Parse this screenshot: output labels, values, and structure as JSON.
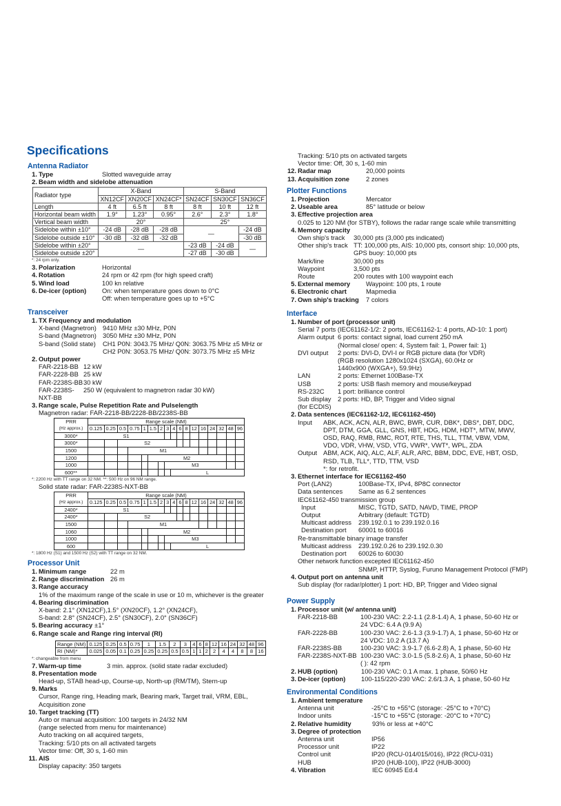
{
  "page_title": "Specifications",
  "colors": {
    "heading": "#0b54a4",
    "text": "#1a1a1a"
  },
  "tables": {
    "antenna": {
      "corner": "Radiator type",
      "bands": [
        "X-Band",
        "S-Band"
      ],
      "models": [
        "XN12CF",
        "XN20CF",
        "XN24CF*",
        "SN24CF",
        "SN30CF",
        "SN36CF"
      ],
      "length": {
        "label": "Length",
        "values": [
          "4 ft",
          "6.5 ft",
          "8 ft",
          "8 ft",
          "10 ft",
          "12 ft"
        ]
      },
      "hbw": {
        "label": "Horizontal beam width",
        "values": [
          "1.9°",
          "1.23°",
          "0.95°",
          "2.6°",
          "2.3°",
          "1.8°"
        ]
      },
      "vbw": {
        "label": "Vertical beam width",
        "values": [
          "20°",
          "25°"
        ]
      },
      "sw10": {
        "label": "Sidelobe within ±10°",
        "values": [
          "-24 dB",
          "-28 dB",
          "-28 dB",
          "—",
          "-24 dB"
        ]
      },
      "so10": {
        "label": "Sidelobe outside ±10°",
        "values": [
          "-30 dB",
          "-32 dB",
          "-32 dB",
          "-30 dB"
        ]
      },
      "sw20": {
        "label": "Sidelobe within ±20°",
        "values": [
          "—",
          "-23 dB",
          "-24 dB",
          "—"
        ]
      },
      "so20": {
        "label": "Sidelobe outside ±20°",
        "values": [
          "-27 dB",
          "-30 dB"
        ]
      }
    },
    "magnetron": {
      "prr_label": "PRR",
      "prr_unit": "(Hz approx.)",
      "range_label": "Range scale (NM)",
      "columns": [
        "0.125",
        "0.25",
        "0.5",
        "0.75",
        "1",
        "1.5",
        "2",
        "3",
        "4",
        "6",
        "8",
        "12",
        "16",
        "24",
        "32",
        "48",
        "96"
      ],
      "rows": [
        {
          "prr": "3000*",
          "mode": "S1",
          "from": "0.125",
          "to": "2"
        },
        {
          "prr": "3000*",
          "mode": "S2",
          "from": "0.5",
          "to": "4"
        },
        {
          "prr": "1500",
          "mode": "M1",
          "from": "0.75",
          "to": "12"
        },
        {
          "prr": "1200",
          "mode": "M2",
          "from": "1.5",
          "to": "32"
        },
        {
          "prr": "1000",
          "mode": "M3",
          "from": "3",
          "to": "32"
        },
        {
          "prr": "600**",
          "mode": "L",
          "from": "4",
          "to": "96"
        }
      ]
    },
    "solid": {
      "prr_label": "PRR",
      "prr_unit": "(Hz approx.)",
      "range_label": "Range scale (NM)",
      "columns": [
        "0.125",
        "0.25",
        "0.5",
        "0.75",
        "1",
        "1.5",
        "2",
        "3",
        "4",
        "6",
        "8",
        "12",
        "16",
        "24",
        "32",
        "48",
        "96"
      ],
      "rows": [
        {
          "prr": "2400*",
          "mode": "S1",
          "from": "0.125",
          "to": "2"
        },
        {
          "prr": "2400*",
          "mode": "S2",
          "from": "0.5",
          "to": "4"
        },
        {
          "prr": "1500",
          "mode": "M1",
          "from": "0.75",
          "to": "12"
        },
        {
          "prr": "1060",
          "mode": "M2",
          "from": "1.5",
          "to": "32"
        },
        {
          "prr": "1000",
          "mode": "M3",
          "from": "3",
          "to": "32"
        },
        {
          "prr": "600",
          "mode": "L",
          "from": "4",
          "to": "96"
        }
      ]
    },
    "ri": {
      "range_label": "Range (NM)",
      "ri_label": "RI (NM)*",
      "range": [
        "0.125",
        "0.25",
        "0.5",
        "0.75",
        "1",
        "1.5",
        "2",
        "3",
        "4",
        "6",
        "8",
        "12",
        "16",
        "24",
        "32",
        "48",
        "96"
      ],
      "ri": [
        "0.025",
        "0.05",
        "0.1",
        "0.25",
        "0.25",
        "0.25",
        "0.5",
        "0.5",
        "1",
        "1",
        "2",
        "2",
        "4",
        "4",
        "8",
        "8",
        "16"
      ]
    }
  },
  "left": [
    {
      "heading": "Antenna Radiator",
      "items": [
        {
          "n": "1.",
          "label": "Type",
          "value": "Slotted waveguide array"
        },
        {
          "n": "2.",
          "label": "Beam width and sidelobe attenuation",
          "body": [
            {
              "table": "antenna"
            },
            {
              "note": "*: 24 rpm only."
            }
          ]
        },
        {
          "n": "3.",
          "label": "Polarization",
          "value": "Horizontal"
        },
        {
          "n": "4.",
          "label": "Rotation",
          "value": "24 rpm or 42 rpm (for high speed craft)"
        },
        {
          "n": "5.",
          "label": "Wind load",
          "value": "100 kn relative"
        },
        {
          "n": "6.",
          "label": "De-icer (option)",
          "value": "On: when temperature goes down to 0°C",
          "body": [
            {
              "kv": [
                {
                  "k": "",
                  "v": "Off: when temperature goes up to +5°C"
                }
              ]
            }
          ]
        }
      ]
    },
    {
      "heading": "Transceiver",
      "items": [
        {
          "n": "1.",
          "label": "TX Frequency and modulation",
          "body": [
            {
              "kv": [
                {
                  "k": "X-band (Magnetron)",
                  "v": "9410 MHz ±30 MHz, P0N"
                },
                {
                  "k": "S-band (Magnetron)",
                  "v": "3050 MHz ±30 MHz, P0N"
                },
                {
                  "k": "S-band (Solid state)",
                  "v": [
                    "CH1 P0N: 3043.75 MHz/ Q0N: 3063.75 MHz ±5 MHz or",
                    "CH2 P0N: 3053.75 MHz/ Q0N: 3073.75 MHz ±5 MHz"
                  ]
                }
              ]
            }
          ]
        },
        {
          "n": "2.",
          "label": "Output power",
          "body": [
            {
              "kv": [
                {
                  "k": "FAR-2218-BB",
                  "v": "12 kW"
                },
                {
                  "k": "FAR-2228-BB",
                  "v": "25 kW"
                },
                {
                  "k": "FAR-2238S-BB",
                  "v": "30 kW"
                },
                {
                  "k": "FAR-2238S-NXT-BB",
                  "v": "250 W (equivalent to magnetron radar 30 kW)"
                }
              ]
            }
          ]
        },
        {
          "n": "3.",
          "label": "Range scale, Pulse Repetition Rate and Pulselength",
          "body": [
            {
              "text": "Magnetron radar: FAR-2218-BB/2228-BB/2238S-BB"
            },
            {
              "table": "magnetron"
            },
            {
              "note": "*: 2200 Hz with TT range on 32 NM. **: 500 Hz on 96 NM range."
            },
            {
              "text": "Solid state radar: FAR-2238S-NXT-BB"
            },
            {
              "table": "solid"
            },
            {
              "note": "*: 1800 Hz (S1) and 1500 Hz (S2) with TT range on 32 NM."
            }
          ]
        }
      ]
    },
    {
      "heading": "Processor Unit",
      "items": [
        {
          "n": "1.",
          "label": "Minimum range",
          "value": "22 m"
        },
        {
          "n": "2.",
          "label": "Range discrimination",
          "value": "26 m"
        },
        {
          "n": "3.",
          "label": "Range accuracy",
          "body": [
            {
              "text": "1% of the maximum range of the scale in use or 10 m, whichever is the greater"
            }
          ]
        },
        {
          "n": "4.",
          "label": "Bearing discrimination",
          "body": [
            {
              "text": "X-band: 2.1° (XN12CF),1.5° (XN20CF), 1.2° (XN24CF),"
            },
            {
              "text": "S-band: 2.8° (SN24CF), 2.5° (SN30CF), 2.0° (SN36CF)"
            }
          ]
        },
        {
          "n": "5.",
          "label": "Bearing accuracy",
          "value": "±1°"
        },
        {
          "n": "6.",
          "label": "Range scale and Range ring interval (RI)",
          "body": [
            {
              "table": "ri"
            },
            {
              "note": "*: changeable from menu"
            }
          ]
        },
        {
          "n": "7.",
          "label": "Warm-up time",
          "value": "3 min. approx. (solid state radar excluded)"
        },
        {
          "n": "8.",
          "label": "Presentation mode",
          "body": [
            {
              "text": "Head-up, STAB head-up, Course-up, North-up (RM/TM), Stern-up"
            }
          ]
        },
        {
          "n": "9.",
          "label": "Marks",
          "body": [
            {
              "text": "Cursor, Range ring, Heading mark, Bearing mark, Target trail, VRM, EBL,"
            },
            {
              "text": "Acquisition zone"
            }
          ]
        },
        {
          "n": "10.",
          "label": "Target tracking (TT)",
          "body": [
            {
              "text": "Auto or manual acquisition: 100 targets in 24/32 NM"
            },
            {
              "text": "(range selected from menu for maintenance)"
            },
            {
              "text": "Auto tracking on all acquired targets,"
            },
            {
              "text": "Tracking: 5/10 pts on all activated targets"
            },
            {
              "text": "Vector time: Off, 30 s, 1-60 min"
            }
          ]
        },
        {
          "n": "11.",
          "label": "AIS",
          "body": [
            {
              "text": "Display capacity: 350 targets"
            }
          ]
        }
      ]
    }
  ],
  "right": [
    {
      "heading": null,
      "items": [
        {
          "body": [
            {
              "text": "Tracking: 5/10 pts on activated targets"
            },
            {
              "text": "Vector time: Off, 30 s, 1-60 min"
            }
          ]
        },
        {
          "n": "12.",
          "label": "Radar map",
          "value": "20,000 points"
        },
        {
          "n": "13.",
          "label": "Acquisition zone",
          "value": "2 zones"
        }
      ]
    },
    {
      "heading": "Plotter Functions",
      "items": [
        {
          "n": "1.",
          "label": "Projection",
          "value": "Mercator"
        },
        {
          "n": "2.",
          "label": "Useable area",
          "value": "85° latitude or below"
        },
        {
          "n": "3.",
          "label": "Effective projection area",
          "body": [
            {
              "text": "0.025 to 120 NM (for STBY), follows the radar range scale while transmitting"
            }
          ]
        },
        {
          "n": "4.",
          "label": "Memory capacity",
          "body": [
            {
              "kv": [
                {
                  "k": "Own ship's track",
                  "v": "30,000 pts (3,000 pts indicated)"
                },
                {
                  "k": "Other ship's track",
                  "v": [
                    "TT: 100,000 pts, AIS: 10,000 pts, consort ship: 10,000 pts,",
                    "GPS buoy: 10,000 pts"
                  ]
                },
                {
                  "k": "Mark/line",
                  "v": "30,000 pts"
                },
                {
                  "k": "Waypoint",
                  "v": "3,500 pts"
                },
                {
                  "k": "Route",
                  "v": "200 routes with 100 waypoint each"
                }
              ]
            }
          ]
        },
        {
          "n": "5.",
          "label": "External memory",
          "value": "Waypoint: 100 pts, 1 route"
        },
        {
          "n": "6.",
          "label": "Electronic chart",
          "value": "Mapmedia"
        },
        {
          "n": "7.",
          "label": "Own ship's tracking",
          "value": "7 colors"
        }
      ]
    },
    {
      "heading": "Interface",
      "items": [
        {
          "n": "1.",
          "label": "Number of port (processor unit)",
          "body": [
            {
              "text": "Serial  7 ports (IEC61162-1/2: 2 ports, IEC61162-1: 4 ports, AD-10: 1 port)"
            },
            {
              "kv": [
                {
                  "k": "Alarm output",
                  "v": [
                    "6 ports: contact signal, load current 250 mA",
                    "(Normal close/ open: 4, System fail: 1, Power fail: 1)"
                  ]
                },
                {
                  "k": "DVI output",
                  "v": [
                    "2 ports: DVI-D, DVI-I or RGB picture data (for VDR)",
                    "(RGB resolution 1280x1024 (SXGA), 60.0Hz or",
                    "1440x900 (WXGA+), 59.9Hz)"
                  ]
                },
                {
                  "k": "LAN",
                  "v": "2 ports: Ethernet 100Base-TX"
                },
                {
                  "k": "USB",
                  "v": "2 ports: USB flash memory and mouse/keypad"
                },
                {
                  "k": "RS-232C",
                  "v": "1 port: brilliance control"
                },
                {
                  "k": "Sub display (for ECDIS)",
                  "v": "2 ports: HD, BP, Trigger and Video signal"
                }
              ]
            }
          ]
        },
        {
          "n": "2.",
          "label": "Data sentences (IEC61162-1/2, IEC61162-450)",
          "body": [
            {
              "kv": [
                {
                  "k": "Input",
                  "v": [
                    "ABK, ACK, ACN, ALR, BWC, BWR, CUR, DBK*, DBS*, DBT, DDC,",
                    "DPT, DTM, GGA, GLL, GNS, HBT, HDG, HDM, HDT*, MTW, MWV,",
                    "OSD, RAQ, RMB, RMC, ROT, RTE, THS, TLL, TTM, VBW, VDM,",
                    "VDO, VDR, VHW, VSD, VTG, VWR*, VWT*, WPL, ZDA"
                  ]
                },
                {
                  "k": "Output",
                  "v": [
                    "ABM, ACK, AIQ, ALC, ALF, ALR, ARC, BBM, DDC, EVE, HBT, OSD,",
                    "RSD, TLB, TLL*, TTD, TTM, VSD",
                    "*: for retrofit."
                  ]
                }
              ]
            }
          ]
        },
        {
          "n": "3.",
          "label": "Ethernet interface for IEC61162-450",
          "body": [
            {
              "kv": [
                {
                  "k": "Port (LAN2)",
                  "v": "100Base-TX, IPv4, 8P8C connector"
                },
                {
                  "k": "Data sentences",
                  "v": "Same as 6.2 sentences"
                }
              ]
            },
            {
              "text": "IEC61162-450 transmission group",
              "kv": [
                {
                  "k": "Input",
                  "v": "MISC, TGTD, SATD, NAVD, TIME, PROP"
                },
                {
                  "k": "Output",
                  "v": "Arbitrary (default: TGTD)"
                },
                {
                  "k": "Multicast address",
                  "v": "239.192.0.1 to 239.192.0.16"
                },
                {
                  "k": "Destination port",
                  "v": "60001 to 60016"
                }
              ]
            },
            {
              "text": "Re-transmittable binary image transfer",
              "kv": [
                {
                  "k": "Multicast address",
                  "v": "239.192.0.26 to 239.192.0.30"
                },
                {
                  "k": "Destination port",
                  "v": "60026 to 60030"
                }
              ]
            },
            {
              "text": "Other network function excepted IEC61162-450",
              "kv": [
                {
                  "k": "",
                  "v": "SNMP, HTTP, Syslog, Furuno Management Protocol (FMP)"
                }
              ]
            }
          ]
        },
        {
          "n": "4.",
          "label": "Output port on antenna unit",
          "body": [
            {
              "text": "Sub display (for radar/plotter)  1 port: HD, BP, Trigger and Video signal"
            }
          ]
        }
      ]
    },
    {
      "heading": "Power Supply",
      "items": [
        {
          "n": "1.",
          "label": "Processor unit (w/ antenna unit)",
          "body": [
            {
              "kv": [
                {
                  "k": "FAR-2218-BB",
                  "v": [
                    "100-230 VAC: 2.2-1.1 (2.8-1.4) A, 1 phase, 50-60 Hz or",
                    "24 VDC: 6.4 A (9.9 A)"
                  ]
                },
                {
                  "k": "FAR-2228-BB",
                  "v": [
                    "100-230 VAC: 2.6-1.3 (3.9-1.7) A, 1 phase, 50-60 Hz or",
                    "24 VDC: 10.2 A (13.7 A)"
                  ]
                },
                {
                  "k": "FAR-2238S-BB",
                  "v": "100-230 VAC: 3.9-1.7 (6.6-2.8) A, 1 phase, 50-60 Hz"
                },
                {
                  "k": "FAR-2238S-NXT-BB",
                  "v": [
                    "100-230 VAC: 3.0-1.5 (5.8-2.6) A, 1 phase, 50-60 Hz",
                    "( ): 42 rpm"
                  ]
                }
              ]
            }
          ]
        },
        {
          "n": "2.",
          "label": "HUB (option)",
          "value": "100-230 VAC: 0.1 A max. 1 phase, 50/60 Hz"
        },
        {
          "n": "3.",
          "label": "De-icer (option)",
          "value": "100-115/220-230 VAC: 2.6/1.3 A, 1 phase, 50-60 Hz"
        }
      ]
    },
    {
      "heading": "Environmental Conditions",
      "items": [
        {
          "n": "1.",
          "label": "Ambient temperature",
          "body": [
            {
              "kv": [
                {
                  "k": "Antenna unit",
                  "v": "-25°C to +55°C (storage: -25°C to +70°C)"
                },
                {
                  "k": "Indoor units",
                  "v": "-15°C to +55°C (storage: -20°C to +70°C)"
                }
              ]
            }
          ]
        },
        {
          "n": "2.",
          "label": "Relative humidity",
          "value": "93% or less at +40°C"
        },
        {
          "n": "3.",
          "label": "Degree of protection",
          "body": [
            {
              "kv": [
                {
                  "k": "Antenna unit",
                  "v": "IP56"
                },
                {
                  "k": "Processor unit",
                  "v": "IP22"
                },
                {
                  "k": "Control unit",
                  "v": "IP20 (RCU-014/015/016), IP22 (RCU-031)"
                },
                {
                  "k": "HUB",
                  "v": "IP20 (HUB-100), IP22 (HUB-3000)"
                }
              ]
            }
          ]
        },
        {
          "n": "4.",
          "label": "Vibration",
          "value": "IEC 60945 Ed.4"
        }
      ]
    }
  ]
}
